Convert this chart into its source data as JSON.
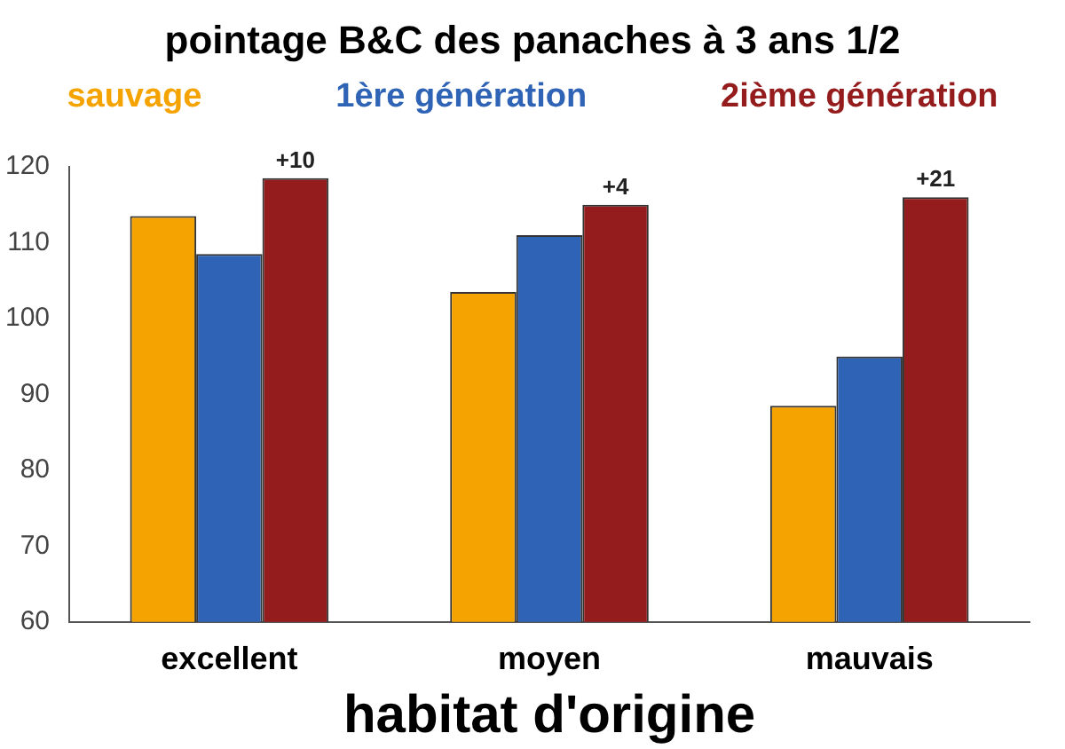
{
  "chart_data": {
    "type": "bar",
    "title": "pointage B&C des panaches à 3 ans 1/2",
    "xlabel": "habitat d'origine",
    "categories": [
      "excellent",
      "moyen",
      "mauvais"
    ],
    "series": [
      {
        "name": "sauvage",
        "color": "#f5a300",
        "values": [
          113.5,
          103.5,
          88.5
        ]
      },
      {
        "name": "1ère génération",
        "color": "#2e63b5",
        "values": [
          108.5,
          111,
          95
        ]
      },
      {
        "name": "2ième génération",
        "color": "#951c1c",
        "values": [
          118.5,
          115,
          116
        ]
      }
    ],
    "annotations": [
      "+10",
      "+4",
      "+21"
    ],
    "ylim": [
      60,
      120
    ],
    "yticks": [
      60,
      70,
      80,
      90,
      100,
      110,
      120
    ],
    "grid": false,
    "legend": "top"
  }
}
